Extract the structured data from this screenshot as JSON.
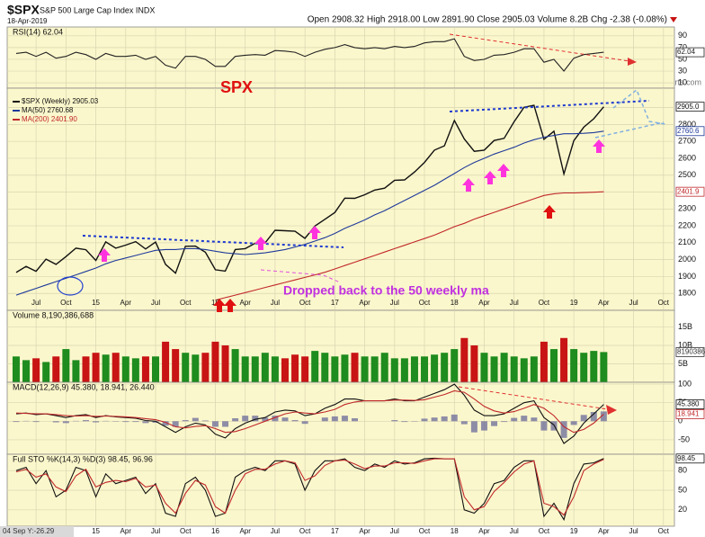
{
  "header": {
    "symbol": "$SPX",
    "name": "S&P 500 Large Cap Index INDX",
    "date": "18-Apr-2019",
    "quote": "Open 2908.32 High 2918.00 Low 2891.90 Close 2905.03 Volume 8.2B Chg -2.38 (-0.08%)",
    "credit": "@StockCharts.com"
  },
  "chart_data": [
    {
      "type": "line",
      "title": "RSI(14) 62.04",
      "ylim": [
        1,
        105
      ],
      "yticks": [
        90,
        70,
        50,
        30,
        10
      ],
      "grid": true,
      "tags": [
        "62.04"
      ],
      "series": [
        {
          "color": "#222222",
          "values": [
            60,
            62,
            55,
            62,
            52,
            55,
            62,
            58,
            50,
            60,
            55,
            55,
            57,
            50,
            55,
            40,
            35,
            55,
            55,
            50,
            38,
            38,
            55,
            57,
            58,
            57,
            65,
            64,
            62,
            55,
            62,
            67,
            70,
            75,
            70,
            68,
            70,
            68,
            72,
            70,
            72,
            78,
            80,
            80,
            85,
            55,
            48,
            50,
            57,
            58,
            62,
            68,
            68,
            45,
            50,
            30,
            52,
            58,
            60,
            62.04
          ]
        }
      ]
    },
    {
      "type": "line",
      "annotations": [
        "SPX",
        "Dropped back to the 50 weekly ma"
      ],
      "ylim": [
        1700,
        3015
      ],
      "yticks": [
        1800,
        1900,
        2000,
        2100,
        2200,
        2300,
        2400,
        2500,
        2600,
        2700,
        2800,
        2900
      ],
      "grid": true,
      "xlim": [
        -0.9,
        66.1
      ],
      "xticks": [
        {
          "value": 2,
          "label": "Jul"
        },
        {
          "value": 5,
          "label": "Oct"
        },
        {
          "value": 8,
          "label": "15"
        },
        {
          "value": 11,
          "label": "Apr"
        },
        {
          "value": 14,
          "label": "Jul"
        },
        {
          "value": 17,
          "label": "Oct"
        },
        {
          "value": 20,
          "label": "16"
        },
        {
          "value": 23,
          "label": "Apr"
        },
        {
          "value": 26,
          "label": "Jul"
        },
        {
          "value": 29,
          "label": "Oct"
        },
        {
          "value": 32,
          "label": "17"
        },
        {
          "value": 35,
          "label": "Apr"
        },
        {
          "value": 38,
          "label": "Jul"
        },
        {
          "value": 41,
          "label": "Oct"
        },
        {
          "value": 44,
          "label": "18"
        },
        {
          "value": 47,
          "label": "Apr"
        },
        {
          "value": 50,
          "label": "Jul"
        },
        {
          "value": 53,
          "label": "Oct"
        },
        {
          "value": 56,
          "label": "19"
        },
        {
          "value": 59,
          "label": "Apr"
        },
        {
          "value": 62,
          "label": "Jul"
        },
        {
          "value": 65,
          "label": "Oct"
        }
      ],
      "tags": [
        "2905.0",
        "2760.6",
        "2401.9"
      ],
      "series": [
        {
          "name": "$SPX (Weekly) 2905.03",
          "color": "#111111",
          "values": [
            1924,
            1960,
            1931,
            2003,
            1972,
            2018,
            2068,
            2059,
            1995,
            2105,
            2068,
            2086,
            2107,
            2063,
            2104,
            1972,
            1920,
            2079,
            2080,
            2044,
            1940,
            1932,
            2060,
            2065,
            2097,
            2099,
            2174,
            2171,
            2168,
            2126,
            2199,
            2239,
            2279,
            2364,
            2363,
            2384,
            2412,
            2423,
            2470,
            2472,
            2519,
            2575,
            2648,
            2674,
            2824,
            2714,
            2641,
            2648,
            2705,
            2718,
            2816,
            2902,
            2914,
            2712,
            2760,
            2507,
            2704,
            2784,
            2834,
            2905.03
          ]
        },
        {
          "name": "MA(50) 2760.68",
          "color": "#1f3a9a",
          "values": [
            1790,
            1810,
            1830,
            1850,
            1870,
            1890,
            1910,
            1930,
            1950,
            1975,
            1995,
            2010,
            2025,
            2040,
            2055,
            2060,
            2060,
            2065,
            2065,
            2060,
            2050,
            2040,
            2035,
            2030,
            2035,
            2040,
            2050,
            2060,
            2075,
            2090,
            2110,
            2130,
            2155,
            2185,
            2210,
            2235,
            2265,
            2290,
            2320,
            2350,
            2380,
            2410,
            2440,
            2475,
            2510,
            2545,
            2575,
            2600,
            2625,
            2645,
            2665,
            2690,
            2710,
            2725,
            2735,
            2745,
            2745,
            2748,
            2752,
            2760.68
          ]
        },
        {
          "name": "MA(200) 2401.90",
          "color": "#c0282a",
          "values": [
            null,
            null,
            null,
            null,
            null,
            null,
            null,
            null,
            null,
            null,
            null,
            null,
            null,
            null,
            null,
            null,
            null,
            null,
            null,
            null,
            1760,
            1775,
            1790,
            1805,
            1820,
            1835,
            1850,
            1865,
            1880,
            1895,
            1910,
            1925,
            1945,
            1965,
            1985,
            2005,
            2025,
            2045,
            2065,
            2085,
            2105,
            2125,
            2145,
            2170,
            2195,
            2215,
            2240,
            2260,
            2280,
            2300,
            2320,
            2340,
            2360,
            2380,
            2390,
            2395,
            2395,
            2397,
            2399,
            2401.9
          ]
        }
      ]
    },
    {
      "type": "bar",
      "title": "Volume 8,190,386,688",
      "ylim": [
        0,
        19.5
      ],
      "yticks": [
        {
          "value": 15,
          "label": "15B"
        },
        {
          "value": 10,
          "label": "10B"
        },
        {
          "value": 5,
          "label": "5B"
        }
      ],
      "grid": true,
      "tags": [
        "8190386688"
      ],
      "color_up": "#1e8c1e",
      "color_down": "#c81414",
      "values": [
        7,
        6,
        6.5,
        5.5,
        7,
        9,
        6,
        7,
        8,
        7.5,
        8,
        7,
        6.5,
        7,
        7,
        11,
        9,
        8,
        7.5,
        8,
        11,
        10,
        9,
        7,
        7,
        8,
        7,
        6.5,
        7.5,
        7,
        8.5,
        8,
        7,
        7.5,
        8,
        7,
        7,
        8,
        6.5,
        6.5,
        7,
        7,
        7.5,
        8,
        9,
        12,
        10,
        8,
        7,
        8,
        7,
        6.5,
        7,
        11,
        9,
        12,
        9,
        8,
        8.5,
        8.19
      ]
    },
    {
      "type": "line",
      "title": "MACD(12,26,9) 45.380, 18.941, 26.440",
      "ylim": [
        -89,
        105
      ],
      "yticks": [
        100,
        50,
        0,
        -50
      ],
      "grid": true,
      "tags": [
        "45.380",
        "18.941"
      ],
      "series": [
        {
          "color": "#111111",
          "values": [
            20,
            22,
            18,
            20,
            15,
            10,
            15,
            18,
            10,
            15,
            12,
            10,
            8,
            2,
            0,
            -15,
            -30,
            -15,
            -5,
            -10,
            -35,
            -45,
            -20,
            -5,
            5,
            10,
            25,
            30,
            28,
            15,
            20,
            35,
            45,
            60,
            60,
            55,
            55,
            55,
            60,
            55,
            55,
            65,
            75,
            85,
            100,
            70,
            30,
            15,
            15,
            20,
            35,
            50,
            55,
            10,
            -10,
            -60,
            -40,
            -5,
            20,
            45.38
          ]
        },
        {
          "color": "#c0282a",
          "values": [
            22,
            21,
            20,
            20,
            18,
            15,
            14,
            15,
            13,
            14,
            13,
            12,
            10,
            7,
            4,
            -3,
            -15,
            -18,
            -14,
            -12,
            -20,
            -30,
            -28,
            -20,
            -10,
            0,
            10,
            20,
            25,
            22,
            20,
            25,
            32,
            45,
            52,
            55,
            55,
            55,
            57,
            57,
            56,
            58,
            65,
            72,
            82,
            78,
            60,
            40,
            28,
            22,
            26,
            35,
            45,
            35,
            15,
            -15,
            -30,
            -22,
            -5,
            18.941
          ]
        }
      ],
      "histogram": {
        "color": "#6a6a9a",
        "values": [
          -2,
          1,
          -2,
          0,
          -3,
          -5,
          1,
          3,
          -3,
          1,
          -1,
          -2,
          -2,
          -5,
          -4,
          -12,
          -15,
          3,
          9,
          2,
          -15,
          -15,
          8,
          15,
          15,
          10,
          15,
          10,
          3,
          -7,
          0,
          10,
          13,
          15,
          8,
          0,
          0,
          0,
          3,
          -2,
          -1,
          7,
          10,
          13,
          18,
          -8,
          -30,
          -25,
          -13,
          -2,
          9,
          15,
          10,
          -25,
          -25,
          -45,
          -10,
          17,
          25,
          26.44
        ]
      }
    },
    {
      "type": "line",
      "title": "Full STO %K(14,3) %D(3) 98.45, 96.96",
      "ylim": [
        -5,
        105
      ],
      "yticks": [
        80,
        50,
        20
      ],
      "grid": true,
      "tags": [
        "98.45"
      ],
      "footer": "04 Sep Y:-26.29",
      "series": [
        {
          "color": "#111111",
          "values": [
            80,
            85,
            60,
            80,
            40,
            50,
            85,
            80,
            40,
            75,
            60,
            65,
            70,
            45,
            60,
            15,
            10,
            60,
            70,
            50,
            10,
            15,
            70,
            80,
            85,
            80,
            95,
            95,
            90,
            50,
            80,
            95,
            95,
            98,
            85,
            80,
            90,
            85,
            95,
            90,
            92,
            98,
            99,
            98,
            98,
            20,
            15,
            30,
            60,
            65,
            85,
            95,
            95,
            10,
            30,
            5,
            60,
            90,
            92,
            98.45
          ]
        },
        {
          "color": "#c0282a",
          "values": [
            78,
            82,
            70,
            75,
            55,
            48,
            72,
            82,
            55,
            62,
            65,
            63,
            68,
            55,
            58,
            30,
            15,
            45,
            65,
            58,
            25,
            15,
            50,
            75,
            82,
            82,
            90,
            95,
            92,
            65,
            72,
            88,
            95,
            96,
            90,
            83,
            87,
            87,
            92,
            92,
            91,
            95,
            98,
            98,
            98,
            40,
            20,
            25,
            48,
            62,
            78,
            90,
            95,
            30,
            25,
            12,
            40,
            80,
            90,
            96.96
          ]
        }
      ]
    }
  ]
}
